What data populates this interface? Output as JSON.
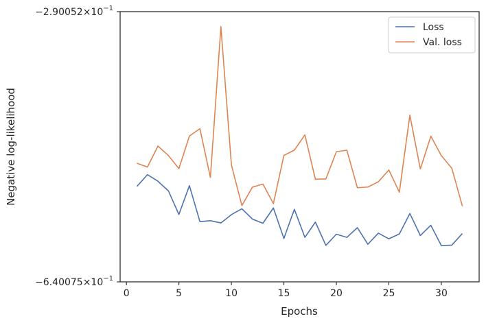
{
  "chart_data": {
    "type": "line",
    "title": "",
    "xlabel": "Epochs",
    "ylabel": "Negative log-likelihood",
    "xlim": [
      -0.6,
      33.6
    ],
    "ylim": [
      -0.640075,
      -0.290052
    ],
    "y_scale": "symlog-like",
    "xticks": [
      0,
      5,
      10,
      15,
      20,
      25,
      30
    ],
    "yticks": [
      {
        "value": -0.290052,
        "label_base": "−2.90052×10",
        "label_exp": "−1"
      },
      {
        "value": -0.640075,
        "label_base": "−6.40075×10",
        "label_exp": "−1"
      }
    ],
    "grid": false,
    "legend": "top-right",
    "x": [
      1,
      2,
      3,
      4,
      5,
      6,
      7,
      8,
      9,
      10,
      11,
      12,
      13,
      14,
      15,
      16,
      17,
      18,
      19,
      20,
      21,
      22,
      23,
      24,
      25,
      26,
      27,
      28,
      29,
      30,
      31,
      32
    ],
    "series": [
      {
        "name": "Loss",
        "color": "#4c72b0",
        "values": [
          -0.4847,
          -0.4684,
          -0.4774,
          -0.4911,
          -0.5261,
          -0.4836,
          -0.5372,
          -0.5357,
          -0.5392,
          -0.5263,
          -0.5174,
          -0.5331,
          -0.5398,
          -0.5162,
          -0.5642,
          -0.5182,
          -0.5624,
          -0.5379,
          -0.5756,
          -0.5572,
          -0.5624,
          -0.5467,
          -0.5738,
          -0.5555,
          -0.5648,
          -0.5568,
          -0.5246,
          -0.5594,
          -0.5429,
          -0.5762,
          -0.5752,
          -0.5562
        ]
      },
      {
        "name": "Val. loss",
        "color": "#dd8452",
        "values": [
          -0.4529,
          -0.4581,
          -0.4308,
          -0.4429,
          -0.4602,
          -0.4183,
          -0.4094,
          -0.4722,
          -0.3031,
          -0.4551,
          -0.5127,
          -0.4858,
          -0.4814,
          -0.5097,
          -0.4428,
          -0.4359,
          -0.4169,
          -0.4746,
          -0.4743,
          -0.438,
          -0.436,
          -0.4866,
          -0.4856,
          -0.4782,
          -0.462,
          -0.493,
          -0.3935,
          -0.4606,
          -0.4185,
          -0.4431,
          -0.4597,
          -0.5133
        ]
      }
    ]
  }
}
